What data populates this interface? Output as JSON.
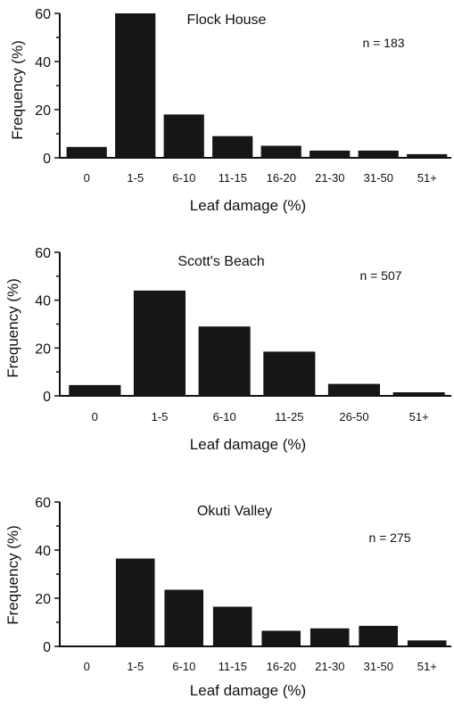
{
  "chart_data": [
    {
      "type": "bar",
      "title": "Flock House",
      "annotation": "n = 183",
      "xlabel": "Leaf damage (%)",
      "ylabel": "Frequency (%)",
      "ylim": [
        0,
        60
      ],
      "yticks": [
        0,
        20,
        40,
        60
      ],
      "categories": [
        "0",
        "1-5",
        "6-10",
        "11-15",
        "16-20",
        "21-30",
        "31-50",
        "51+"
      ],
      "values": [
        4.5,
        60,
        18,
        9,
        5,
        3,
        3,
        1.5
      ],
      "grid": false,
      "legend": "none"
    },
    {
      "type": "bar",
      "title": "Scott's Beach",
      "annotation": "n = 507",
      "xlabel": "Leaf damage (%)",
      "ylabel": "Frequency (%)",
      "ylim": [
        0,
        60
      ],
      "yticks": [
        0,
        20,
        40,
        60
      ],
      "categories": [
        "0",
        "1-5",
        "6-10",
        "11-25",
        "26-50",
        "51+"
      ],
      "values": [
        4.5,
        44,
        29,
        18.5,
        5,
        1.5
      ],
      "grid": false,
      "legend": "none"
    },
    {
      "type": "bar",
      "title": "Okuti Valley",
      "annotation": "n = 275",
      "xlabel": "Leaf damage (%)",
      "ylabel": "Frequency (%)",
      "ylim": [
        0,
        60
      ],
      "yticks": [
        0,
        20,
        40,
        60
      ],
      "categories": [
        "0",
        "1-5",
        "6-10",
        "11-15",
        "16-20",
        "21-30",
        "31-50",
        "51+"
      ],
      "values": [
        0.3,
        36.5,
        23.5,
        16.5,
        6.5,
        7.5,
        8.5,
        2.5
      ],
      "grid": false,
      "legend": "none"
    }
  ]
}
